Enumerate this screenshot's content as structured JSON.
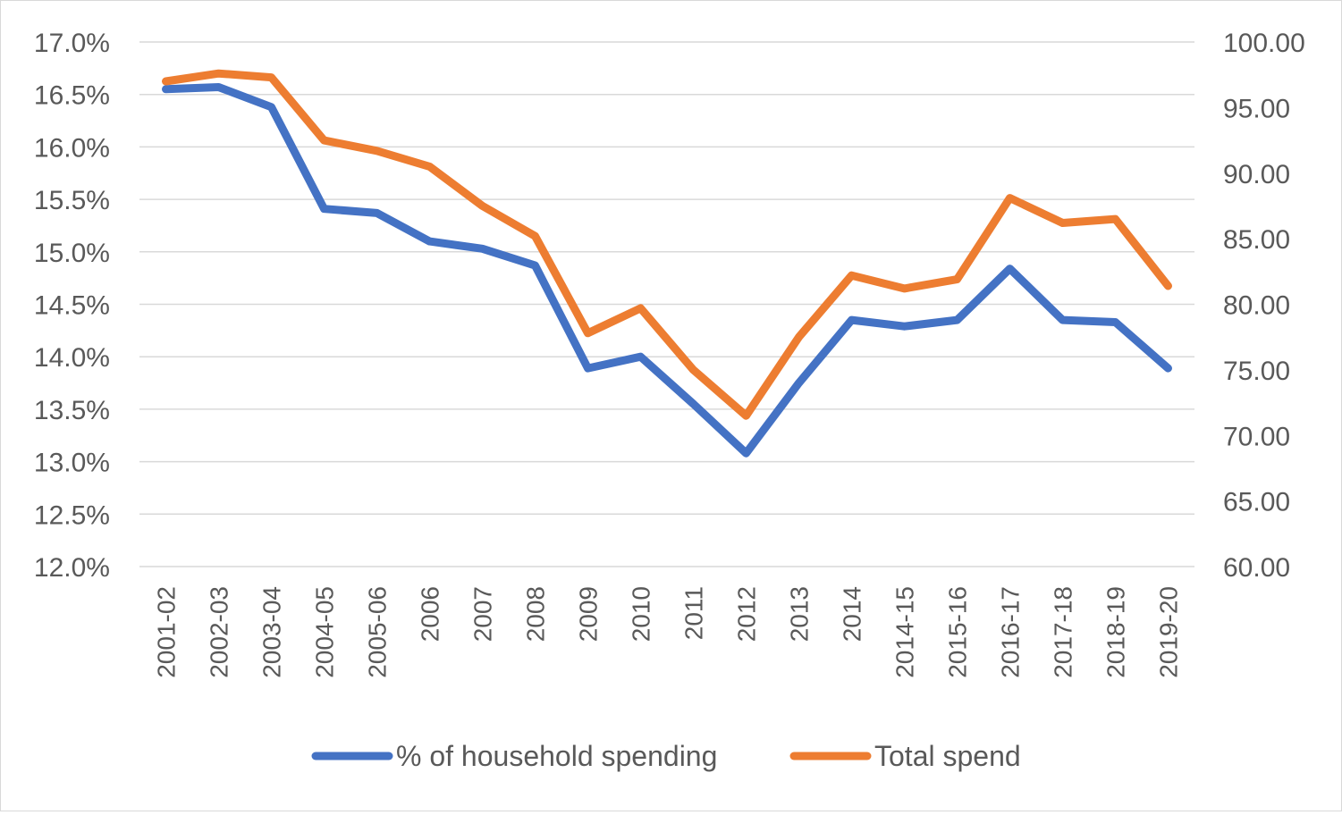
{
  "chart_data": {
    "type": "line",
    "title": "",
    "xlabel": "",
    "ylabel": "",
    "categories": [
      "2001-02",
      "2002-03",
      "2003-04",
      "2004-05",
      "2005-06",
      "2006",
      "2007",
      "2008",
      "2009",
      "2010",
      "2011",
      "2012",
      "2013",
      "2014",
      "2014-15",
      "2015-16",
      "2016-17",
      "2017-18",
      "2018-19",
      "2019-20"
    ],
    "y_left": {
      "min": 12.0,
      "max": 17.0,
      "step": 0.5,
      "tick_labels": [
        "12.0%",
        "12.5%",
        "13.0%",
        "13.5%",
        "14.0%",
        "14.5%",
        "15.0%",
        "15.5%",
        "16.0%",
        "16.5%",
        "17.0%"
      ]
    },
    "y_right": {
      "min": 60.0,
      "max": 100.0,
      "step": 5.0,
      "tick_labels": [
        "60.00",
        "65.00",
        "70.00",
        "75.00",
        "80.00",
        "85.00",
        "90.00",
        "95.00",
        "100.00"
      ]
    },
    "series": [
      {
        "name": "% of household spending",
        "axis": "left",
        "color": "#4472c4",
        "values": [
          16.55,
          16.57,
          16.38,
          15.41,
          15.37,
          15.1,
          15.03,
          14.87,
          13.89,
          14.0,
          13.55,
          13.08,
          13.75,
          14.35,
          14.29,
          14.35,
          14.84,
          14.35,
          14.33,
          13.89
        ]
      },
      {
        "name": "Total spend",
        "axis": "right",
        "color": "#ed7d31",
        "values": [
          97.0,
          97.6,
          97.3,
          92.5,
          91.7,
          90.5,
          87.5,
          85.2,
          77.8,
          79.7,
          75.0,
          71.5,
          77.5,
          82.2,
          81.2,
          81.9,
          88.1,
          86.2,
          86.5,
          81.4
        ]
      }
    ],
    "legend": {
      "position": "bottom"
    },
    "grid": true
  }
}
